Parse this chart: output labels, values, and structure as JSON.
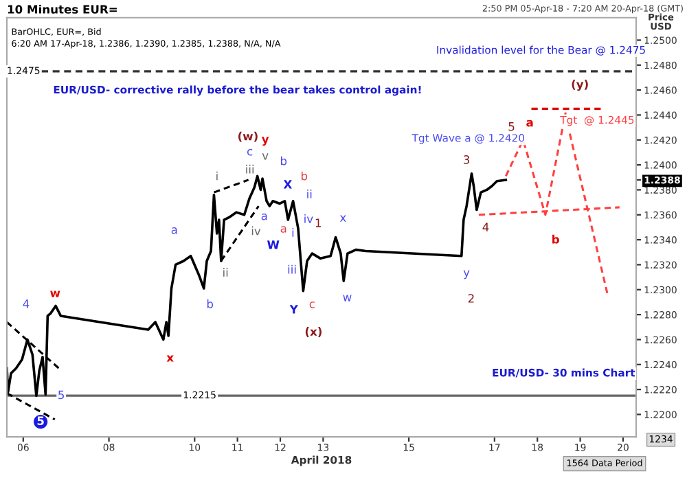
{
  "chart_data": {
    "type": "line",
    "title": "10 Minutes EUR=",
    "subtitle": "2:50 PM 05-Apr-18 - 7:20 AM 20-Apr-18 (GMT)",
    "xlabel": "April 2018",
    "ylabel": "Price\nUSD",
    "xlim": [
      "2018-04-05T14:50",
      "2018-04-20T07:20"
    ],
    "ylim": [
      1.2182,
      1.2518
    ],
    "xticks": [
      {
        "value": "2018-04-06",
        "label": "06"
      },
      {
        "value": "2018-04-08",
        "label": "08"
      },
      {
        "value": "2018-04-10",
        "label": "10"
      },
      {
        "value": "2018-04-11",
        "label": "11"
      },
      {
        "value": "2018-04-12",
        "label": "12"
      },
      {
        "value": "2018-04-13",
        "label": "13"
      },
      {
        "value": "2018-04-15",
        "label": "15"
      },
      {
        "value": "2018-04-17",
        "label": "17"
      },
      {
        "value": "2018-04-18",
        "label": "18"
      },
      {
        "value": "2018-04-19",
        "label": "19"
      },
      {
        "value": "2018-04-20",
        "label": "20"
      }
    ],
    "yticks": [
      {
        "value": 1.22,
        "label": "1.2200"
      },
      {
        "value": 1.222,
        "label": "1.2220"
      },
      {
        "value": 1.224,
        "label": "1.2240"
      },
      {
        "value": 1.226,
        "label": "1.2260"
      },
      {
        "value": 1.228,
        "label": "1.2280"
      },
      {
        "value": 1.23,
        "label": "1.2300"
      },
      {
        "value": 1.232,
        "label": "1.2320"
      },
      {
        "value": 1.234,
        "label": "1.2340"
      },
      {
        "value": 1.236,
        "label": "1.2360"
      },
      {
        "value": 1.238,
        "label": "1.2380"
      },
      {
        "value": 1.2388,
        "label": "1.2388"
      },
      {
        "value": 1.24,
        "label": "1.2400"
      },
      {
        "value": 1.242,
        "label": "1.2420"
      },
      {
        "value": 1.244,
        "label": "1.2440"
      },
      {
        "value": 1.246,
        "label": "1.2460"
      },
      {
        "value": 1.248,
        "label": "1.2480"
      },
      {
        "value": 1.25,
        "label": "1.2500"
      }
    ],
    "series": [
      {
        "color": "#000000",
        "line_style": "solid",
        "x": [
          "2018-04-05T14:50",
          "2018-04-05T15:30",
          "2018-04-05T17:10",
          "2018-04-05T20:00",
          "2018-04-05T23:20",
          "2018-04-06T02:20",
          "2018-04-06T05:10",
          "2018-04-06T07:20",
          "2018-04-06T09:00",
          "2018-04-06T10:50",
          "2018-04-06T12:30",
          "2018-04-06T13:40",
          "2018-04-06T15:20",
          "2018-04-06T18:10",
          "2018-04-06T21:00",
          "2018-04-08T22:00",
          "2018-04-09T02:00",
          "2018-04-09T06:30",
          "2018-04-09T08:10",
          "2018-04-09T09:20",
          "2018-04-09T11:00",
          "2018-04-09T13:20",
          "2018-04-09T17:50",
          "2018-04-09T21:50",
          "2018-04-10T02:20",
          "2018-04-10T05:10",
          "2018-04-10T06:50",
          "2018-04-10T09:10",
          "2018-04-10T10:50",
          "2018-04-10T12:30",
          "2018-04-10T13:40",
          "2018-04-10T14:50",
          "2018-04-10T16:30",
          "2018-04-10T19:20",
          "2018-04-10T23:20",
          "2018-04-11T03:50",
          "2018-04-11T06:40",
          "2018-04-11T09:30",
          "2018-04-11T11:10",
          "2018-04-11T13:00",
          "2018-04-11T14:00",
          "2018-04-11T16:20",
          "2018-04-11T18:00",
          "2018-04-11T19:50",
          "2018-04-11T23:40",
          "2018-04-12T02:30",
          "2018-04-12T04:20",
          "2018-04-12T07:10",
          "2018-04-12T10:00",
          "2018-04-12T11:00",
          "2018-04-12T12:50",
          "2018-04-12T15:00",
          "2018-04-12T17:50",
          "2018-04-12T22:30",
          "2018-04-13T04:10",
          "2018-04-13T07:00",
          "2018-04-13T09:50",
          "2018-04-13T11:30",
          "2018-04-13T13:40",
          "2018-04-13T18:20",
          "2018-04-13T23:50",
          "2018-04-16T05:30",
          "2018-04-16T06:40",
          "2018-04-16T08:20",
          "2018-04-16T11:10",
          "2018-04-16T12:20",
          "2018-04-16T14:00",
          "2018-04-16T16:20",
          "2018-04-16T19:40",
          "2018-04-16T22:30",
          "2018-04-17T01:20",
          "2018-04-17T06:20"
        ],
        "values": [
          1.2237,
          1.2218,
          1.2233,
          1.2237,
          1.2244,
          1.226,
          1.2248,
          1.2215,
          1.2235,
          1.2246,
          1.2216,
          1.2279,
          1.2281,
          1.2287,
          1.2279,
          1.2268,
          1.2274,
          1.226,
          1.2274,
          1.2263,
          1.2301,
          1.232,
          1.2323,
          1.2327,
          1.2312,
          1.2301,
          1.2323,
          1.2331,
          1.2376,
          1.2345,
          1.2356,
          1.2323,
          1.2356,
          1.2358,
          1.2362,
          1.236,
          1.2373,
          1.2382,
          1.2391,
          1.238,
          1.2389,
          1.2371,
          1.2367,
          1.2371,
          1.2369,
          1.2371,
          1.2356,
          1.2371,
          1.2349,
          1.2331,
          1.2299,
          1.2323,
          1.2329,
          1.2325,
          1.2327,
          1.2342,
          1.2329,
          1.2307,
          1.2329,
          1.2332,
          1.2331,
          1.2327,
          1.2356,
          1.2367,
          1.2393,
          1.2383,
          1.2364,
          1.2378,
          1.238,
          1.2383,
          1.2387,
          1.2388
        ]
      },
      {
        "color": "#ff4040",
        "line_style": "dashed",
        "x": [
          "2018-04-17T06:20",
          "2018-04-17T16:00",
          "2018-04-18T04:30",
          "2018-04-18T15:50"
        ],
        "values": [
          1.2391,
          1.242,
          1.236,
          1.2442
        ]
      },
      {
        "color": "#ff4040",
        "line_style": "dashed",
        "x": [
          "2018-04-18T18:10",
          "2018-04-19T15:10"
        ],
        "values": [
          1.2425,
          1.2297
        ]
      },
      {
        "color": "#ff4040",
        "line_style": "dashed",
        "x": [
          "2018-04-16T15:10",
          "2018-04-19T22:00"
        ],
        "values": [
          1.236,
          1.2366
        ]
      },
      {
        "color": "#e00000",
        "line_style": "dashed",
        "x": [
          "2018-04-17T20:40",
          "2018-04-19T12:20"
        ],
        "values": [
          1.2445,
          1.2445
        ]
      },
      {
        "color": "#000000",
        "line_style": "dashed",
        "x": [
          "2018-04-05T14:50",
          "2018-04-06T21:30"
        ],
        "values": [
          1.2274,
          1.2235
        ]
      },
      {
        "color": "#000000",
        "line_style": "dashed",
        "x": [
          "2018-04-05T14:50",
          "2018-04-06T17:40"
        ],
        "values": [
          1.2217,
          1.2196
        ]
      },
      {
        "color": "#000000",
        "line_style": "dashed",
        "x": [
          "2018-04-10T10:50",
          "2018-04-11T06:10"
        ],
        "values": [
          1.2378,
          1.2388
        ]
      },
      {
        "color": "#000000",
        "line_style": "dashed",
        "x": [
          "2018-04-10T14:50",
          "2018-04-11T11:50"
        ],
        "values": [
          1.2323,
          1.2367
        ]
      }
    ],
    "ref_lines": [
      {
        "axis": "y",
        "value": 1.2475,
        "label": "1.2475",
        "color": "#333333",
        "line_style": "dashed"
      },
      {
        "axis": "y",
        "value": 1.2215,
        "label": "1.2215",
        "color": "#666666",
        "line_style": "solid"
      }
    ],
    "annotations": [
      "BarOHLC, EUR=, Bid",
      "6:20 AM 17-Apr-18, 1.2386, 1.2390, 1.2385, 1.2388, N/A, N/A",
      "1564 Data Period",
      "1234",
      "Invalidation level for the Bear @ 1.2475",
      "EUR/USD- corrective rally before the bear takes control again!",
      "EUR/USD- 30 mins Chart",
      "Tgt Wave a @ 1.2420",
      "Tgt  @ 1.2445",
      "4",
      "w",
      "x",
      "5",
      "5",
      "a",
      "b",
      "ii",
      "i",
      "iii",
      "c",
      "(w)",
      "y",
      "v",
      "iv",
      "a",
      "W",
      "b",
      "X",
      "b",
      "a",
      "i",
      "ii",
      "iv",
      "1",
      "iii",
      "Y",
      "c",
      "(x)",
      "x",
      "w",
      "y",
      "2",
      "3",
      "4",
      "5",
      "a",
      "b",
      "(y)"
    ]
  }
}
